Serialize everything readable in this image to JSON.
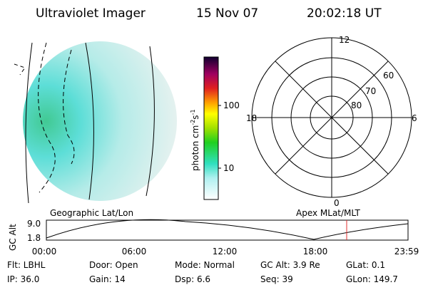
{
  "header": {
    "title": "Ultraviolet Imager",
    "date": "15 Nov 07",
    "time": "20:02:18 UT"
  },
  "colorbar": {
    "unit": "photon cm",
    "exp1": "-2",
    "unit2": "s",
    "exp2": "-1",
    "ticks": [
      "100",
      "10"
    ]
  },
  "polar": {
    "mlt_labels": [
      "12",
      "18",
      "6",
      "0"
    ],
    "lat_labels": [
      "60",
      "70",
      "80"
    ]
  },
  "timeline": {
    "left_title": "Geographic Lat/Lon",
    "right_title": "Apex MLat/MLT",
    "axis_label": "GC Alt",
    "yticks": [
      "9.0",
      "1.8"
    ],
    "xticks": [
      "00:00",
      "06:00",
      "12:00",
      "18:00",
      "23:59"
    ]
  },
  "info": {
    "rows": [
      [
        "Flt: LBHL",
        "Door: Open",
        "Mode: Normal",
        "GC Alt: 3.9 Re",
        "GLat:   0.1"
      ],
      [
        "IP: 36.0",
        "Gain: 14",
        "Dsp:     6.6",
        "Seq: 39",
        "GLon: 149.7"
      ]
    ]
  }
}
